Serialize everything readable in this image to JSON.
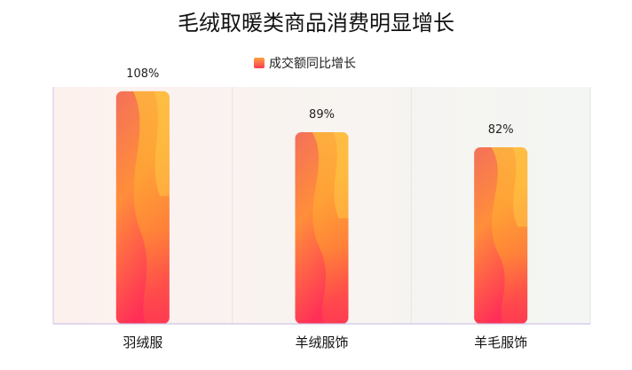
{
  "chart_data": {
    "type": "bar",
    "title": "毛绒取暖类商品消费明显增长",
    "categories": [
      "羽绒服",
      "羊绒服饰",
      "羊毛服饰"
    ],
    "series": [
      {
        "name": "成交额同比增长",
        "values": [
          108,
          89,
          82
        ],
        "labels": [
          "108%",
          "89%",
          "82%"
        ]
      }
    ],
    "ylim": [
      0,
      110
    ],
    "grid": "vertical",
    "legend": "top-center",
    "colors": {
      "bar_top": "#f26a5b",
      "bar_mid": "#ff9a2e",
      "bar_bottom": "#ff2d55",
      "legend_swatch": "#ff7a3d",
      "panel_left": "#fdf1ee",
      "panel_right": "#f3f6f3",
      "axis": "#c9b8e8",
      "grid": "#e8e8ec"
    }
  }
}
